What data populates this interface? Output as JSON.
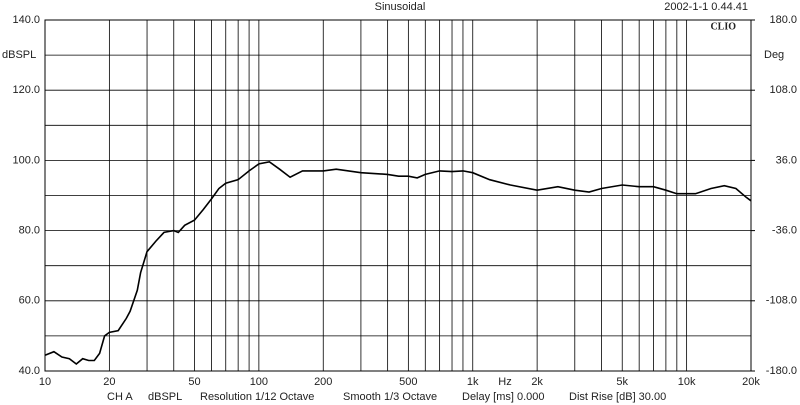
{
  "chart_data": {
    "type": "line",
    "title": "Sinusoidal",
    "timestamp": "2002-1-1 0.44.41",
    "logo": "CLIO",
    "ylabel": "dBSPL",
    "y2label": "Deg",
    "xlabel": "Hz",
    "log_x": true,
    "grid": true,
    "color": "#000000",
    "xlim": [
      10,
      20000
    ],
    "xticks": [
      10,
      20,
      50,
      100,
      200,
      500,
      {
        "value": 1000,
        "label": "1k"
      },
      {
        "value": 2000,
        "label": "2k"
      },
      {
        "value": 5000,
        "label": "5k"
      },
      {
        "value": 10000,
        "label": "10k"
      },
      {
        "value": 20000,
        "label": "20k"
      }
    ],
    "minor_xticks": [
      30,
      40,
      60,
      70,
      80,
      90,
      300,
      400,
      600,
      700,
      800,
      900,
      3000,
      4000,
      6000,
      7000,
      8000,
      9000
    ],
    "ylim": [
      40,
      140
    ],
    "yticks": [
      {
        "value": 40,
        "label": "40.0"
      },
      {
        "value": 60,
        "label": "60.0"
      },
      {
        "value": 80,
        "label": "80.0"
      },
      {
        "value": 100,
        "label": "100.0"
      },
      {
        "value": 120,
        "label": "120.0"
      },
      {
        "value": 140,
        "label": "140.0"
      }
    ],
    "minor_yticks": [
      50,
      70,
      90,
      110,
      130
    ],
    "y2lim": [
      -180,
      180
    ],
    "y2ticks": [
      {
        "value": -180,
        "label": "-180.0"
      },
      {
        "value": -108,
        "label": "-108.0"
      },
      {
        "value": -36,
        "label": "-36.0"
      },
      {
        "value": 36,
        "label": "36.0"
      },
      {
        "value": 108,
        "label": "108.0"
      },
      {
        "value": 180,
        "label": "180.0"
      }
    ],
    "x": [
      10,
      11,
      12,
      13,
      14,
      15,
      16,
      17,
      18,
      19,
      20,
      22,
      24,
      25,
      27,
      28,
      30,
      33,
      36,
      40,
      42,
      45,
      50,
      55,
      60,
      65,
      70,
      80,
      90,
      100,
      112,
      125,
      140,
      160,
      200,
      230,
      300,
      400,
      450,
      500,
      550,
      600,
      700,
      800,
      900,
      1000,
      1200,
      1500,
      2000,
      2500,
      3000,
      3500,
      4000,
      5000,
      6000,
      7000,
      8000,
      9000,
      10000,
      11000,
      13000,
      15000,
      17000,
      19000,
      20000
    ],
    "values": [
      44.5,
      45.5,
      44,
      43.5,
      42,
      43.5,
      43,
      43,
      45,
      50,
      51,
      51.5,
      55,
      57,
      63,
      68,
      74,
      77,
      79.5,
      80,
      79.5,
      81.5,
      83,
      86,
      89,
      92,
      93.5,
      94.5,
      97,
      99,
      99.6,
      97.5,
      95.2,
      97,
      97,
      97.5,
      96.5,
      96,
      95.5,
      95.5,
      95,
      96,
      97,
      96.8,
      97,
      96.5,
      94.5,
      93,
      91.5,
      92.5,
      91.5,
      91,
      92,
      93,
      92.5,
      92.5,
      91.5,
      90.5,
      90.5,
      90.5,
      92,
      92.8,
      92,
      89.5,
      88.5
    ],
    "footer": [
      "CH A",
      "dBSPL",
      "Resolution 1/12 Octave",
      "Smooth 1/3 Octave",
      "Delay [ms] 0.000",
      "Dist Rise [dB] 30.00"
    ]
  }
}
